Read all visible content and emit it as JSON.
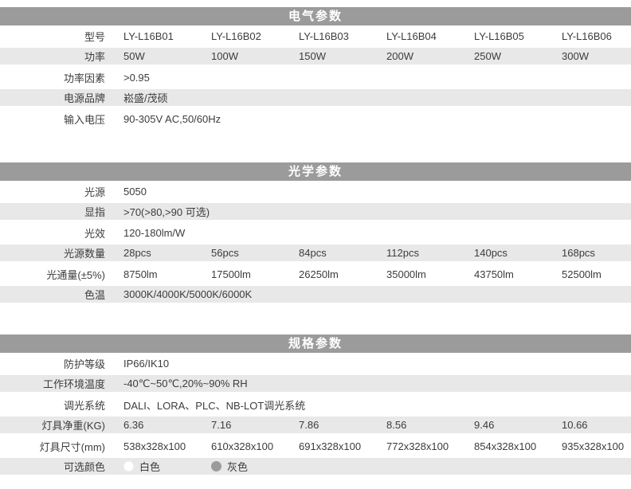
{
  "colors": {
    "section_header_bg": "#9b9b9b",
    "section_header_text": "#ffffff",
    "row_alt_bg": "#e8e8e8",
    "body_text": "#3c3c3c"
  },
  "sections": [
    {
      "title": "电气参数",
      "rows": [
        {
          "label": "型号",
          "values": [
            "LY-L16B01",
            "LY-L16B02",
            "LY-L16B03",
            "LY-L16B04",
            "LY-L16B05",
            "LY-L16B06"
          ]
        },
        {
          "label": "功率",
          "values": [
            "50W",
            "100W",
            "150W",
            "200W",
            "250W",
            "300W"
          ]
        },
        {
          "label": "功率因素",
          "values": [
            ">0.95"
          ]
        },
        {
          "label": "电源品牌",
          "values": [
            "崧盛/茂硕"
          ]
        },
        {
          "label": "输入电压",
          "values": [
            "90-305V AC,50/60Hz"
          ]
        }
      ]
    },
    {
      "title": "光学参数",
      "rows": [
        {
          "label": "光源",
          "values": [
            "5050"
          ]
        },
        {
          "label": "显指",
          "values": [
            ">70(>80,>90 可选)"
          ]
        },
        {
          "label": "光效",
          "values": [
            "120-180lm/W"
          ]
        },
        {
          "label": "光源数量",
          "values": [
            "28pcs",
            "56pcs",
            "84pcs",
            "112pcs",
            "140pcs",
            "168pcs"
          ]
        },
        {
          "label": "光通量(±5%)",
          "values": [
            "8750lm",
            "17500lm",
            "26250lm",
            "35000lm",
            "43750lm",
            "52500lm"
          ]
        },
        {
          "label": "色温",
          "values": [
            "3000K/4000K/5000K/6000K"
          ]
        }
      ]
    },
    {
      "title": "规格参数",
      "rows": [
        {
          "label": "防护等级",
          "values": [
            "IP66/IK10"
          ]
        },
        {
          "label": "工作环境温度",
          "values": [
            "-40℃~50℃,20%~90% RH"
          ]
        },
        {
          "label": "调光系统",
          "values": [
            "DALI、LORA、PLC、NB-LOT调光系统"
          ]
        },
        {
          "label": "灯具净重(KG)",
          "values": [
            "6.36",
            "7.16",
            "7.86",
            "8.56",
            "9.46",
            "10.66"
          ]
        },
        {
          "label": "灯具尺寸(mm)",
          "values": [
            "538x328x100",
            "610x328x100",
            "691x328x100",
            "772x328x100",
            "854x328x100",
            "935x328x100"
          ]
        },
        {
          "label": "可选颜色",
          "options": [
            {
              "label": "白色",
              "hex": "#ffffff"
            },
            {
              "label": "灰色",
              "hex": "#9b9b9b"
            }
          ]
        }
      ]
    }
  ]
}
